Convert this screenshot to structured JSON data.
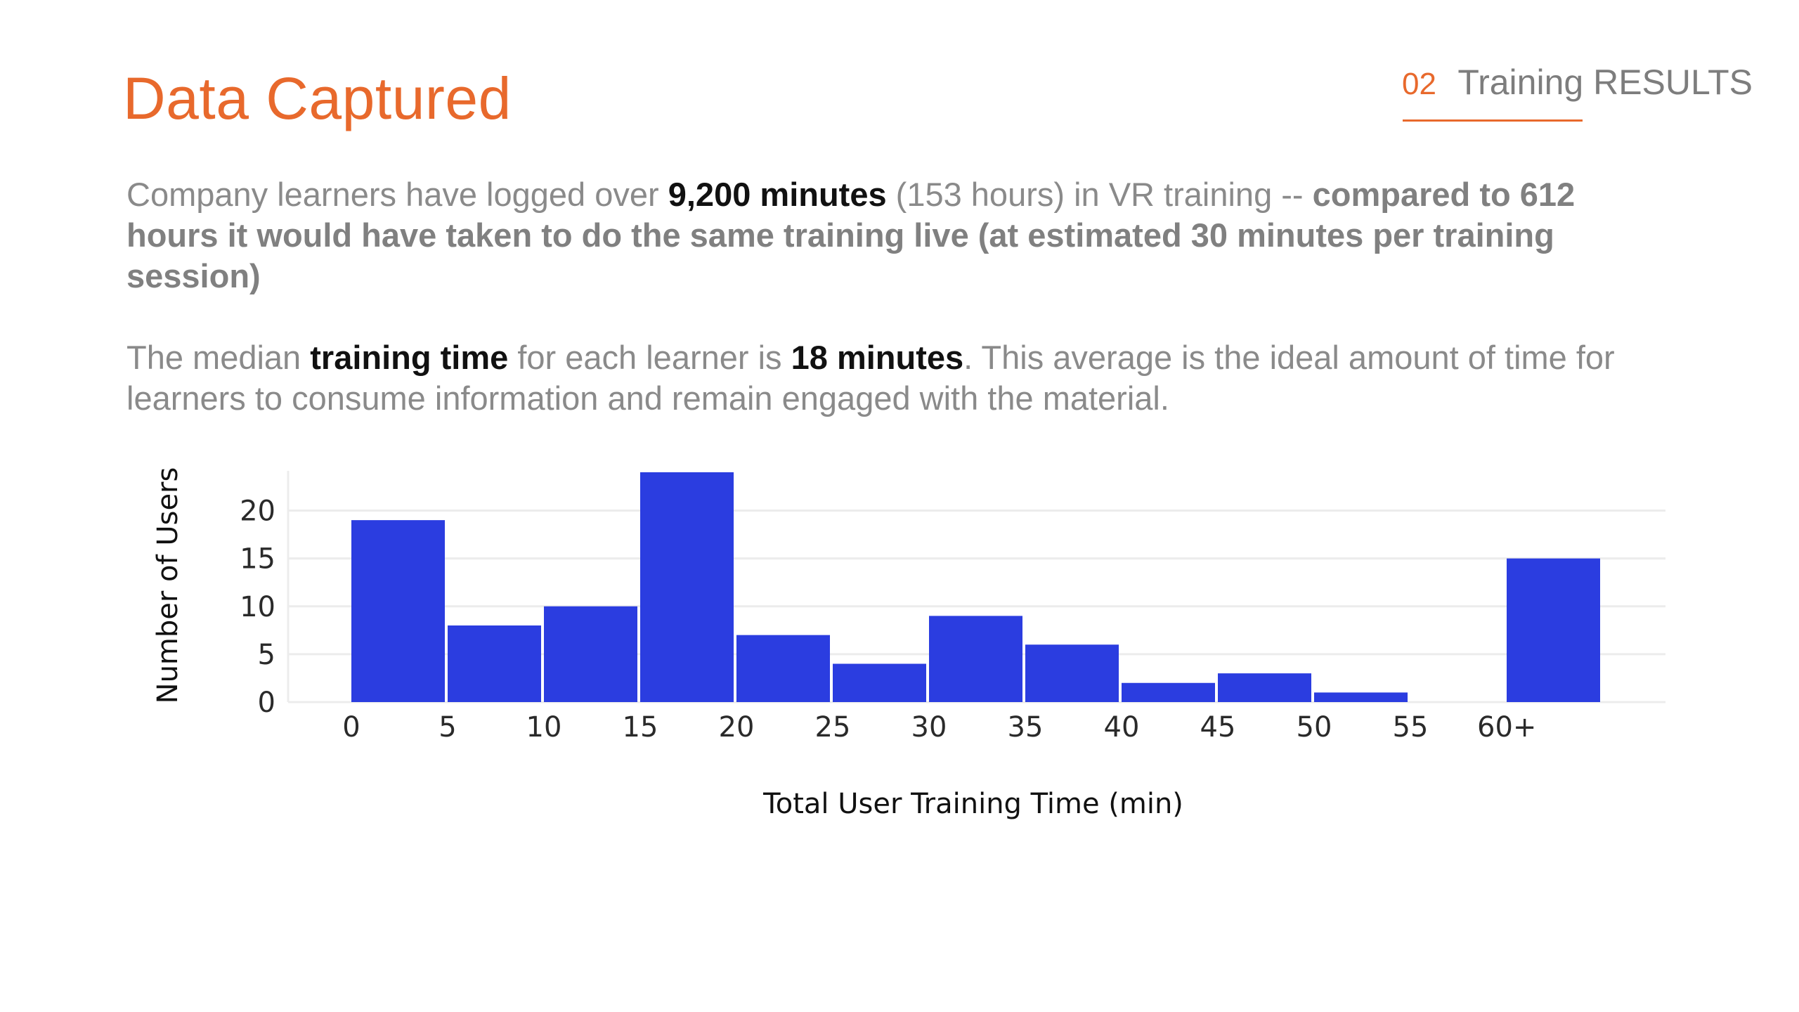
{
  "header": {
    "title": "Data Captured",
    "section_number": "02",
    "section_label": "Training RESULTS"
  },
  "intro": {
    "p1": {
      "t1": "Company learners have logged over ",
      "b1": "9,200 minutes",
      "t2": " (153 hours) in VR training -- ",
      "b2": "compared to 612 hours it would have taken to do the same training live (at estimated 30 minutes per training session)"
    },
    "p2": {
      "t1": "The median ",
      "b1": "training time",
      "t2": " for each learner is ",
      "b2": "18 minutes",
      "t3": ". This average is the ideal amount of time for learners to consume information and remain engaged with the material."
    }
  },
  "colors": {
    "accent": "#e8692c",
    "bar": "#2b3de0",
    "gray_text": "#8a8a8a",
    "grid": "#ececec"
  },
  "chart_data": {
    "type": "bar",
    "categories": [
      "0",
      "5",
      "10",
      "15",
      "20",
      "25",
      "30",
      "35",
      "40",
      "45",
      "50",
      "55",
      "60+"
    ],
    "values": [
      19,
      8,
      10,
      24,
      7,
      4,
      9,
      6,
      2,
      3,
      1,
      0,
      15
    ],
    "xlabel": "Total User Training Time (min)",
    "ylabel": "Number of Users",
    "ylim": [
      0,
      24
    ],
    "yticks": [
      0,
      5,
      10,
      15,
      20
    ],
    "grid": true,
    "legend": "none"
  }
}
